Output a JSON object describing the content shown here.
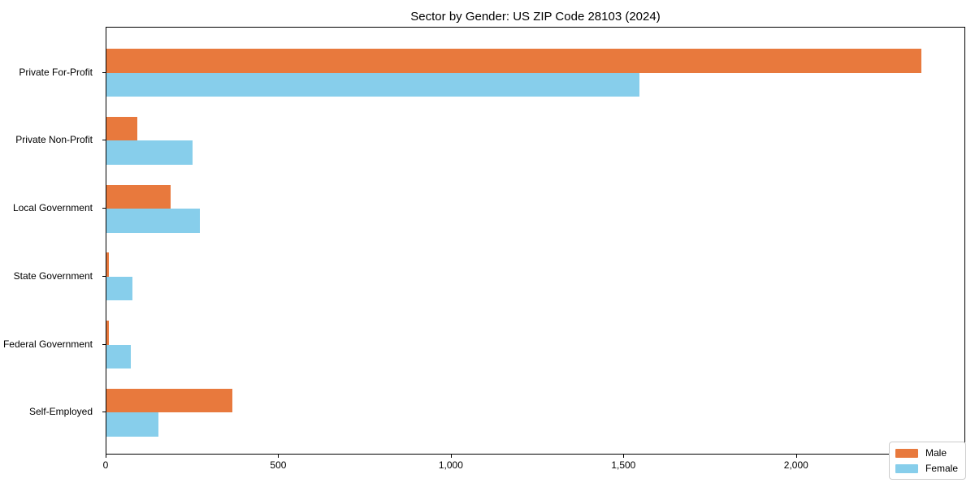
{
  "chart_data": {
    "type": "bar",
    "orientation": "horizontal",
    "title": "Sector by Gender: US ZIP Code 28103 (2024)",
    "categories": [
      "Private For-Profit",
      "Private Non-Profit",
      "Local Government",
      "State Government",
      "Federal Government",
      "Self-Employed"
    ],
    "series": [
      {
        "name": "Male",
        "color": "#e8793d",
        "values": [
          2360,
          90,
          185,
          6,
          7,
          365
        ]
      },
      {
        "name": "Female",
        "color": "#87ceeb",
        "values": [
          1545,
          250,
          270,
          75,
          70,
          150
        ]
      }
    ],
    "xlabel": "",
    "ylabel": "",
    "xlim": [
      0,
      2490
    ],
    "xticks": [
      {
        "value": 0,
        "label": "0"
      },
      {
        "value": 500,
        "label": "500"
      },
      {
        "value": 1000,
        "label": "1,000"
      },
      {
        "value": 1500,
        "label": "1,500"
      },
      {
        "value": 2000,
        "label": "2,000"
      }
    ],
    "grid": false,
    "legend": {
      "position": "lower-right",
      "entries": [
        "Male",
        "Female"
      ]
    }
  }
}
